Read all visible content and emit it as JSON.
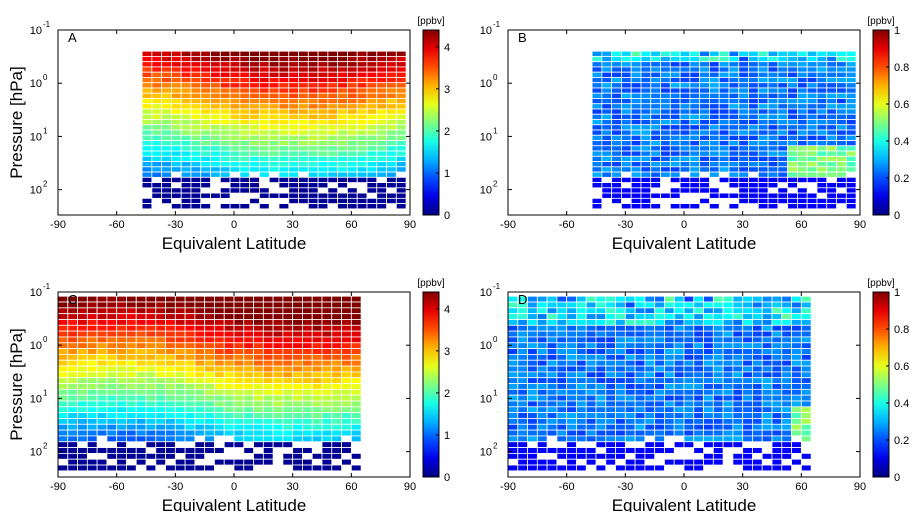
{
  "chart_data": [
    {
      "type": "heatmap",
      "panel_label": "A",
      "xlabel": "Equivalent Latitude",
      "ylabel": "Pressure [hPa]",
      "x_ticks": [
        "-90",
        "-60",
        "-30",
        "0",
        "30",
        "60",
        "90"
      ],
      "y_ticks": [
        {
          "base": "10",
          "exp": "-1"
        },
        {
          "base": "10",
          "exp": "0"
        },
        {
          "base": "10",
          "exp": "1"
        },
        {
          "base": "10",
          "exp": "2"
        }
      ],
      "xlim": [
        -90,
        90
      ],
      "ylim_hpa": [
        0.1,
        300
      ],
      "y_scale": "log-reversed",
      "colorbar": {
        "unit": "[ppbv]",
        "min": 0,
        "max": 4.4,
        "ticks": [
          "0",
          "1",
          "2",
          "3",
          "4"
        ],
        "colormap": "jet"
      },
      "field": "mixing_ratio",
      "lat_extent": [
        -47,
        88
      ],
      "top_pressure_hpa": 0.25,
      "grid": true
    },
    {
      "type": "heatmap",
      "panel_label": "B",
      "xlabel": "Equivalent Latitude",
      "ylabel": "",
      "x_ticks": [
        "-90",
        "-60",
        "-30",
        "0",
        "30",
        "60",
        "90"
      ],
      "y_ticks": [
        {
          "base": "10",
          "exp": "-1"
        },
        {
          "base": "10",
          "exp": "0"
        },
        {
          "base": "10",
          "exp": "1"
        },
        {
          "base": "10",
          "exp": "2"
        }
      ],
      "xlim": [
        -90,
        90
      ],
      "ylim_hpa": [
        0.1,
        300
      ],
      "y_scale": "log-reversed",
      "colorbar": {
        "unit": "[ppbv]",
        "min": 0,
        "max": 1,
        "ticks": [
          "0",
          "0.2",
          "0.4",
          "0.6",
          "0.8",
          "1"
        ],
        "colormap": "jet"
      },
      "field": "standard_deviation",
      "lat_extent": [
        -47,
        88
      ],
      "top_pressure_hpa": 0.25,
      "grid": true
    },
    {
      "type": "heatmap",
      "panel_label": "C",
      "xlabel": "Equivalent Latitude",
      "ylabel": "Pressure [hPa]",
      "x_ticks": [
        "-90",
        "-60",
        "-30",
        "0",
        "30",
        "60",
        "90"
      ],
      "y_ticks": [
        {
          "base": "10",
          "exp": "-1"
        },
        {
          "base": "10",
          "exp": "0"
        },
        {
          "base": "10",
          "exp": "1"
        },
        {
          "base": "10",
          "exp": "2"
        }
      ],
      "xlim": [
        -90,
        90
      ],
      "ylim_hpa": [
        0.1,
        300
      ],
      "y_scale": "log-reversed",
      "colorbar": {
        "unit": "[ppbv]",
        "min": 0,
        "max": 4.4,
        "ticks": [
          "0",
          "1",
          "2",
          "3",
          "4"
        ],
        "colormap": "jet"
      },
      "field": "mixing_ratio",
      "lat_extent": [
        -90,
        65
      ],
      "top_pressure_hpa": 0.12,
      "grid": true
    },
    {
      "type": "heatmap",
      "panel_label": "D",
      "xlabel": "Equivalent Latitude",
      "ylabel": "",
      "x_ticks": [
        "-90",
        "-60",
        "-30",
        "0",
        "30",
        "60",
        "90"
      ],
      "y_ticks": [
        {
          "base": "10",
          "exp": "-1"
        },
        {
          "base": "10",
          "exp": "0"
        },
        {
          "base": "10",
          "exp": "1"
        },
        {
          "base": "10",
          "exp": "2"
        }
      ],
      "xlim": [
        -90,
        90
      ],
      "ylim_hpa": [
        0.1,
        300
      ],
      "y_scale": "log-reversed",
      "colorbar": {
        "unit": "[ppbv]",
        "min": 0,
        "max": 1,
        "ticks": [
          "0",
          "0.2",
          "0.4",
          "0.6",
          "0.8",
          "1"
        ],
        "colormap": "jet"
      },
      "field": "standard_deviation",
      "lat_extent": [
        -90,
        65
      ],
      "top_pressure_hpa": 0.12,
      "grid": true
    }
  ]
}
